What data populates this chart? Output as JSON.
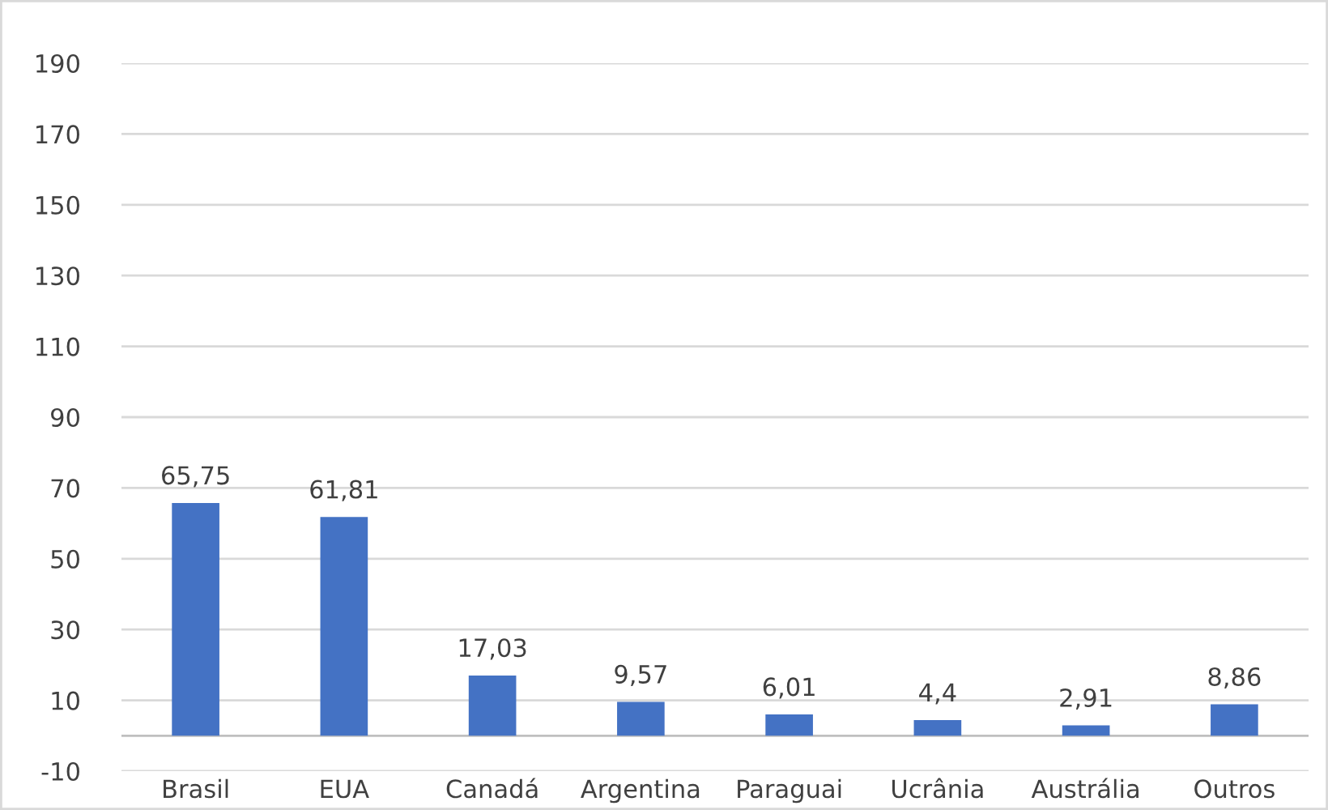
{
  "chart_data": {
    "type": "bar",
    "categories": [
      "Brasil",
      "EUA",
      "Canadá",
      "Argentina",
      "Paraguai",
      "Ucrânia",
      "Austrália",
      "Outros"
    ],
    "values": [
      65.75,
      61.81,
      17.03,
      9.57,
      6.01,
      4.4,
      2.91,
      8.86
    ],
    "value_labels": [
      "65,75",
      "61,81",
      "17,03",
      "9,57",
      "6,01",
      "4,4",
      "2,91",
      "8,86"
    ],
    "color": "#4472c4",
    "ylim": [
      -10,
      190
    ],
    "yticks": [
      -10,
      10,
      30,
      50,
      70,
      90,
      110,
      130,
      150,
      170,
      190
    ],
    "grid": "y"
  }
}
